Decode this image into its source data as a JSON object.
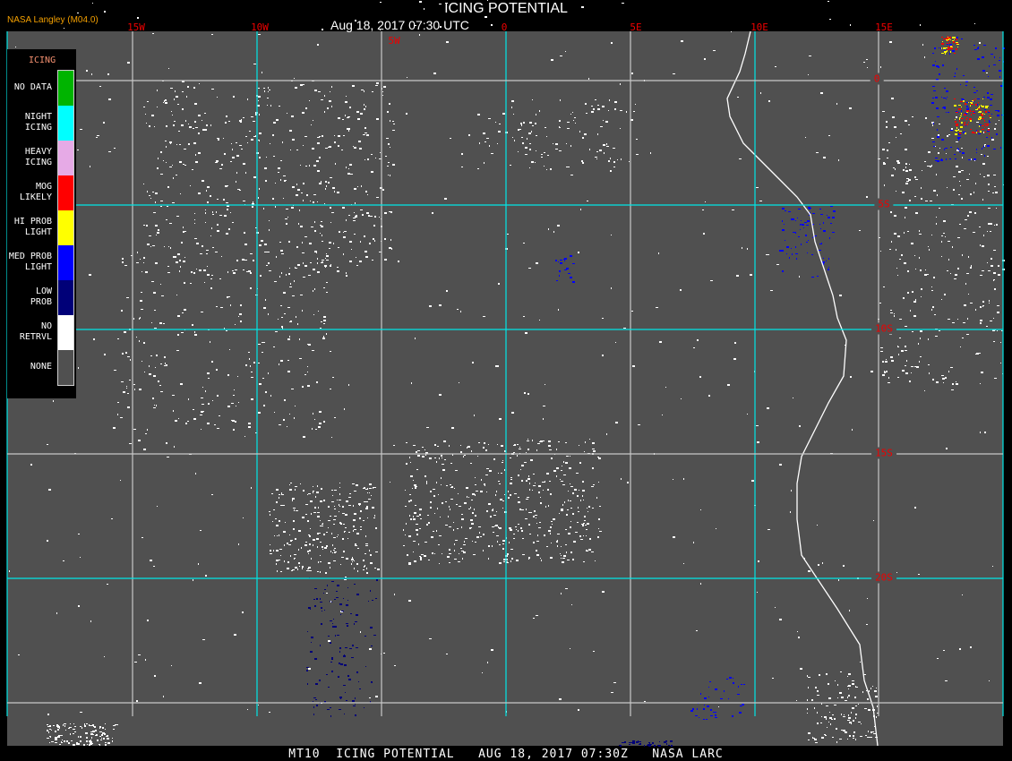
{
  "header": {
    "title": "ICING POTENTIAL",
    "datetime": "Aug 18, 2017 07:30 UTC",
    "organization": "NASA Langley (M04.0)"
  },
  "longitude_labels": [
    "15W",
    "10W",
    "5W",
    "0",
    "5E",
    "10E",
    "15E"
  ],
  "latitude_labels": [
    "0",
    "5S",
    "10S",
    "15S",
    "20S"
  ],
  "legend": {
    "title": "ICING",
    "items": [
      {
        "label": "NO DATA",
        "color": "#00b400"
      },
      {
        "label": "NIGHT\nICING",
        "color": "#00ffff"
      },
      {
        "label": "HEAVY\nICING",
        "color": "#e6aae6"
      },
      {
        "label": "MOG\nLIKELY",
        "color": "#ff0000"
      },
      {
        "label": "HI PROB\nLIGHT",
        "color": "#ffff00"
      },
      {
        "label": "MED PROB\nLIGHT",
        "color": "#0000ff"
      },
      {
        "label": "LOW\nPROB",
        "color": "#000078"
      },
      {
        "label": "NO\nRETRVL",
        "color": "#ffffff"
      },
      {
        "label": "NONE",
        "color": "#505050"
      }
    ]
  },
  "footer": "MT10  ICING POTENTIAL   AUG 18, 2017 07:30Z   NASA LARC",
  "colors": {
    "background": "#505050",
    "grid_cyan": "#00e5e5",
    "grid_gray": "#c8c8c8",
    "label_red": "#e00000"
  }
}
